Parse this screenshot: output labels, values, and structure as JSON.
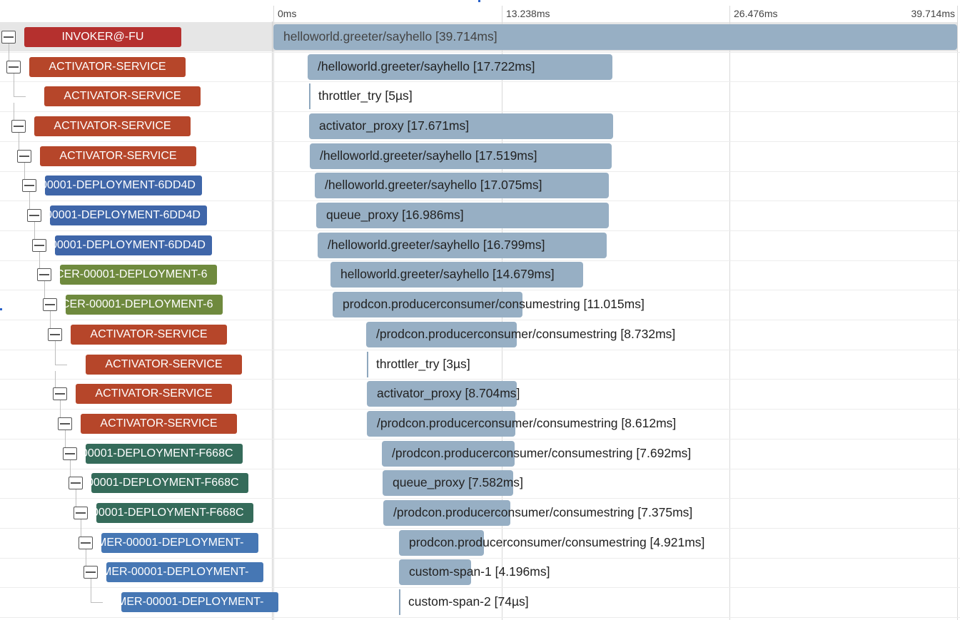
{
  "timeline": {
    "ticks": [
      "0ms",
      "13.238ms",
      "26.476ms",
      "39.714ms"
    ],
    "total_ms": 39.714
  },
  "colors": {
    "activator": "#b6462a",
    "invoker": "#b5302e",
    "deployment_blue": "#3f66a9",
    "deployment_green": "#6f8a3e",
    "deployment_teal": "#356b5a",
    "consumer_blue": "#4677b4",
    "span_bar": "#97afc4"
  },
  "spans": [
    {
      "service": "INVOKER@-FU",
      "color": "invoker",
      "depth": 0,
      "collapsible": true,
      "name": "helloworld.greeter/sayhello",
      "duration": "39.714ms",
      "start_ms": 0,
      "duration_ms": 39.714
    },
    {
      "service": "ACTIVATOR-SERVICE",
      "color": "activator",
      "depth": 1,
      "collapsible": true,
      "name": "/helloworld.greeter/sayhello",
      "duration": "17.722ms",
      "start_ms": 2.0,
      "duration_ms": 17.722
    },
    {
      "service": "ACTIVATOR-SERVICE",
      "color": "activator",
      "depth": 2,
      "collapsible": false,
      "name": "throttler_try",
      "duration": "5µs",
      "start_ms": 2.07,
      "duration_ms": 0.005
    },
    {
      "service": "ACTIVATOR-SERVICE",
      "color": "activator",
      "depth": 2,
      "collapsible": true,
      "name": "activator_proxy",
      "duration": "17.671ms",
      "start_ms": 2.07,
      "duration_ms": 17.671
    },
    {
      "service": "ACTIVATOR-SERVICE",
      "color": "activator",
      "depth": 3,
      "collapsible": true,
      "name": "/helloworld.greeter/sayhello",
      "duration": "17.519ms",
      "start_ms": 2.1,
      "duration_ms": 17.519
    },
    {
      "service": "00001-DEPLOYMENT-6DD4D",
      "color": "deployment_blue",
      "depth": 4,
      "collapsible": true,
      "name": "/helloworld.greeter/sayhello",
      "duration": "17.075ms",
      "start_ms": 2.4,
      "duration_ms": 17.075
    },
    {
      "service": "00001-DEPLOYMENT-6DD4D",
      "color": "deployment_blue",
      "depth": 5,
      "collapsible": true,
      "name": "queue_proxy",
      "duration": "16.986ms",
      "start_ms": 2.5,
      "duration_ms": 16.986
    },
    {
      "service": "00001-DEPLOYMENT-6DD4D",
      "color": "deployment_blue",
      "depth": 6,
      "collapsible": true,
      "name": "/helloworld.greeter/sayhello",
      "duration": "16.799ms",
      "start_ms": 2.55,
      "duration_ms": 16.799
    },
    {
      "service": "CER-00001-DEPLOYMENT-6",
      "color": "deployment_green",
      "depth": 7,
      "collapsible": true,
      "name": "helloworld.greeter/sayhello",
      "duration": "14.679ms",
      "start_ms": 3.3,
      "duration_ms": 14.679
    },
    {
      "service": "CER-00001-DEPLOYMENT-6",
      "color": "deployment_green",
      "depth": 8,
      "collapsible": true,
      "name": "prodcon.producerconsumer/consumestring",
      "duration": "11.015ms",
      "start_ms": 3.45,
      "duration_ms": 11.015
    },
    {
      "service": "ACTIVATOR-SERVICE",
      "color": "activator",
      "depth": 9,
      "collapsible": true,
      "name": "/prodcon.producerconsumer/consumestring",
      "duration": "8.732ms",
      "start_ms": 5.4,
      "duration_ms": 8.732
    },
    {
      "service": "ACTIVATOR-SERVICE",
      "color": "activator",
      "depth": 10,
      "collapsible": false,
      "name": "throttler_try",
      "duration": "3µs",
      "start_ms": 5.45,
      "duration_ms": 0.003
    },
    {
      "service": "ACTIVATOR-SERVICE",
      "color": "activator",
      "depth": 10,
      "collapsible": true,
      "name": "activator_proxy",
      "duration": "8.704ms",
      "start_ms": 5.45,
      "duration_ms": 8.704
    },
    {
      "service": "ACTIVATOR-SERVICE",
      "color": "activator",
      "depth": 11,
      "collapsible": true,
      "name": "/prodcon.producerconsumer/consumestring",
      "duration": "8.612ms",
      "start_ms": 5.45,
      "duration_ms": 8.612
    },
    {
      "service": "00001-DEPLOYMENT-F668C",
      "color": "deployment_teal",
      "depth": 12,
      "collapsible": true,
      "name": "/prodcon.producerconsumer/consumestring",
      "duration": "7.692ms",
      "start_ms": 6.3,
      "duration_ms": 7.692
    },
    {
      "service": "00001-DEPLOYMENT-F668C",
      "color": "deployment_teal",
      "depth": 13,
      "collapsible": true,
      "name": "queue_proxy",
      "duration": "7.582ms",
      "start_ms": 6.35,
      "duration_ms": 7.582
    },
    {
      "service": "00001-DEPLOYMENT-F668C",
      "color": "deployment_teal",
      "depth": 14,
      "collapsible": true,
      "name": "/prodcon.producerconsumer/consumestring",
      "duration": "7.375ms",
      "start_ms": 6.4,
      "duration_ms": 7.375
    },
    {
      "service": "MER-00001-DEPLOYMENT-",
      "color": "consumer_blue",
      "depth": 15,
      "collapsible": true,
      "name": "prodcon.producerconsumer/consumestring",
      "duration": "4.921ms",
      "start_ms": 7.3,
      "duration_ms": 4.921
    },
    {
      "service": "MER-00001-DEPLOYMENT-",
      "color": "consumer_blue",
      "depth": 16,
      "collapsible": true,
      "name": "custom-span-1",
      "duration": "4.196ms",
      "start_ms": 7.3,
      "duration_ms": 4.196
    },
    {
      "service": "MER-00001-DEPLOYMENT-",
      "color": "consumer_blue",
      "depth": 17,
      "collapsible": false,
      "name": "custom-span-2",
      "duration": "74µs",
      "start_ms": 7.3,
      "duration_ms": 0.074
    }
  ]
}
